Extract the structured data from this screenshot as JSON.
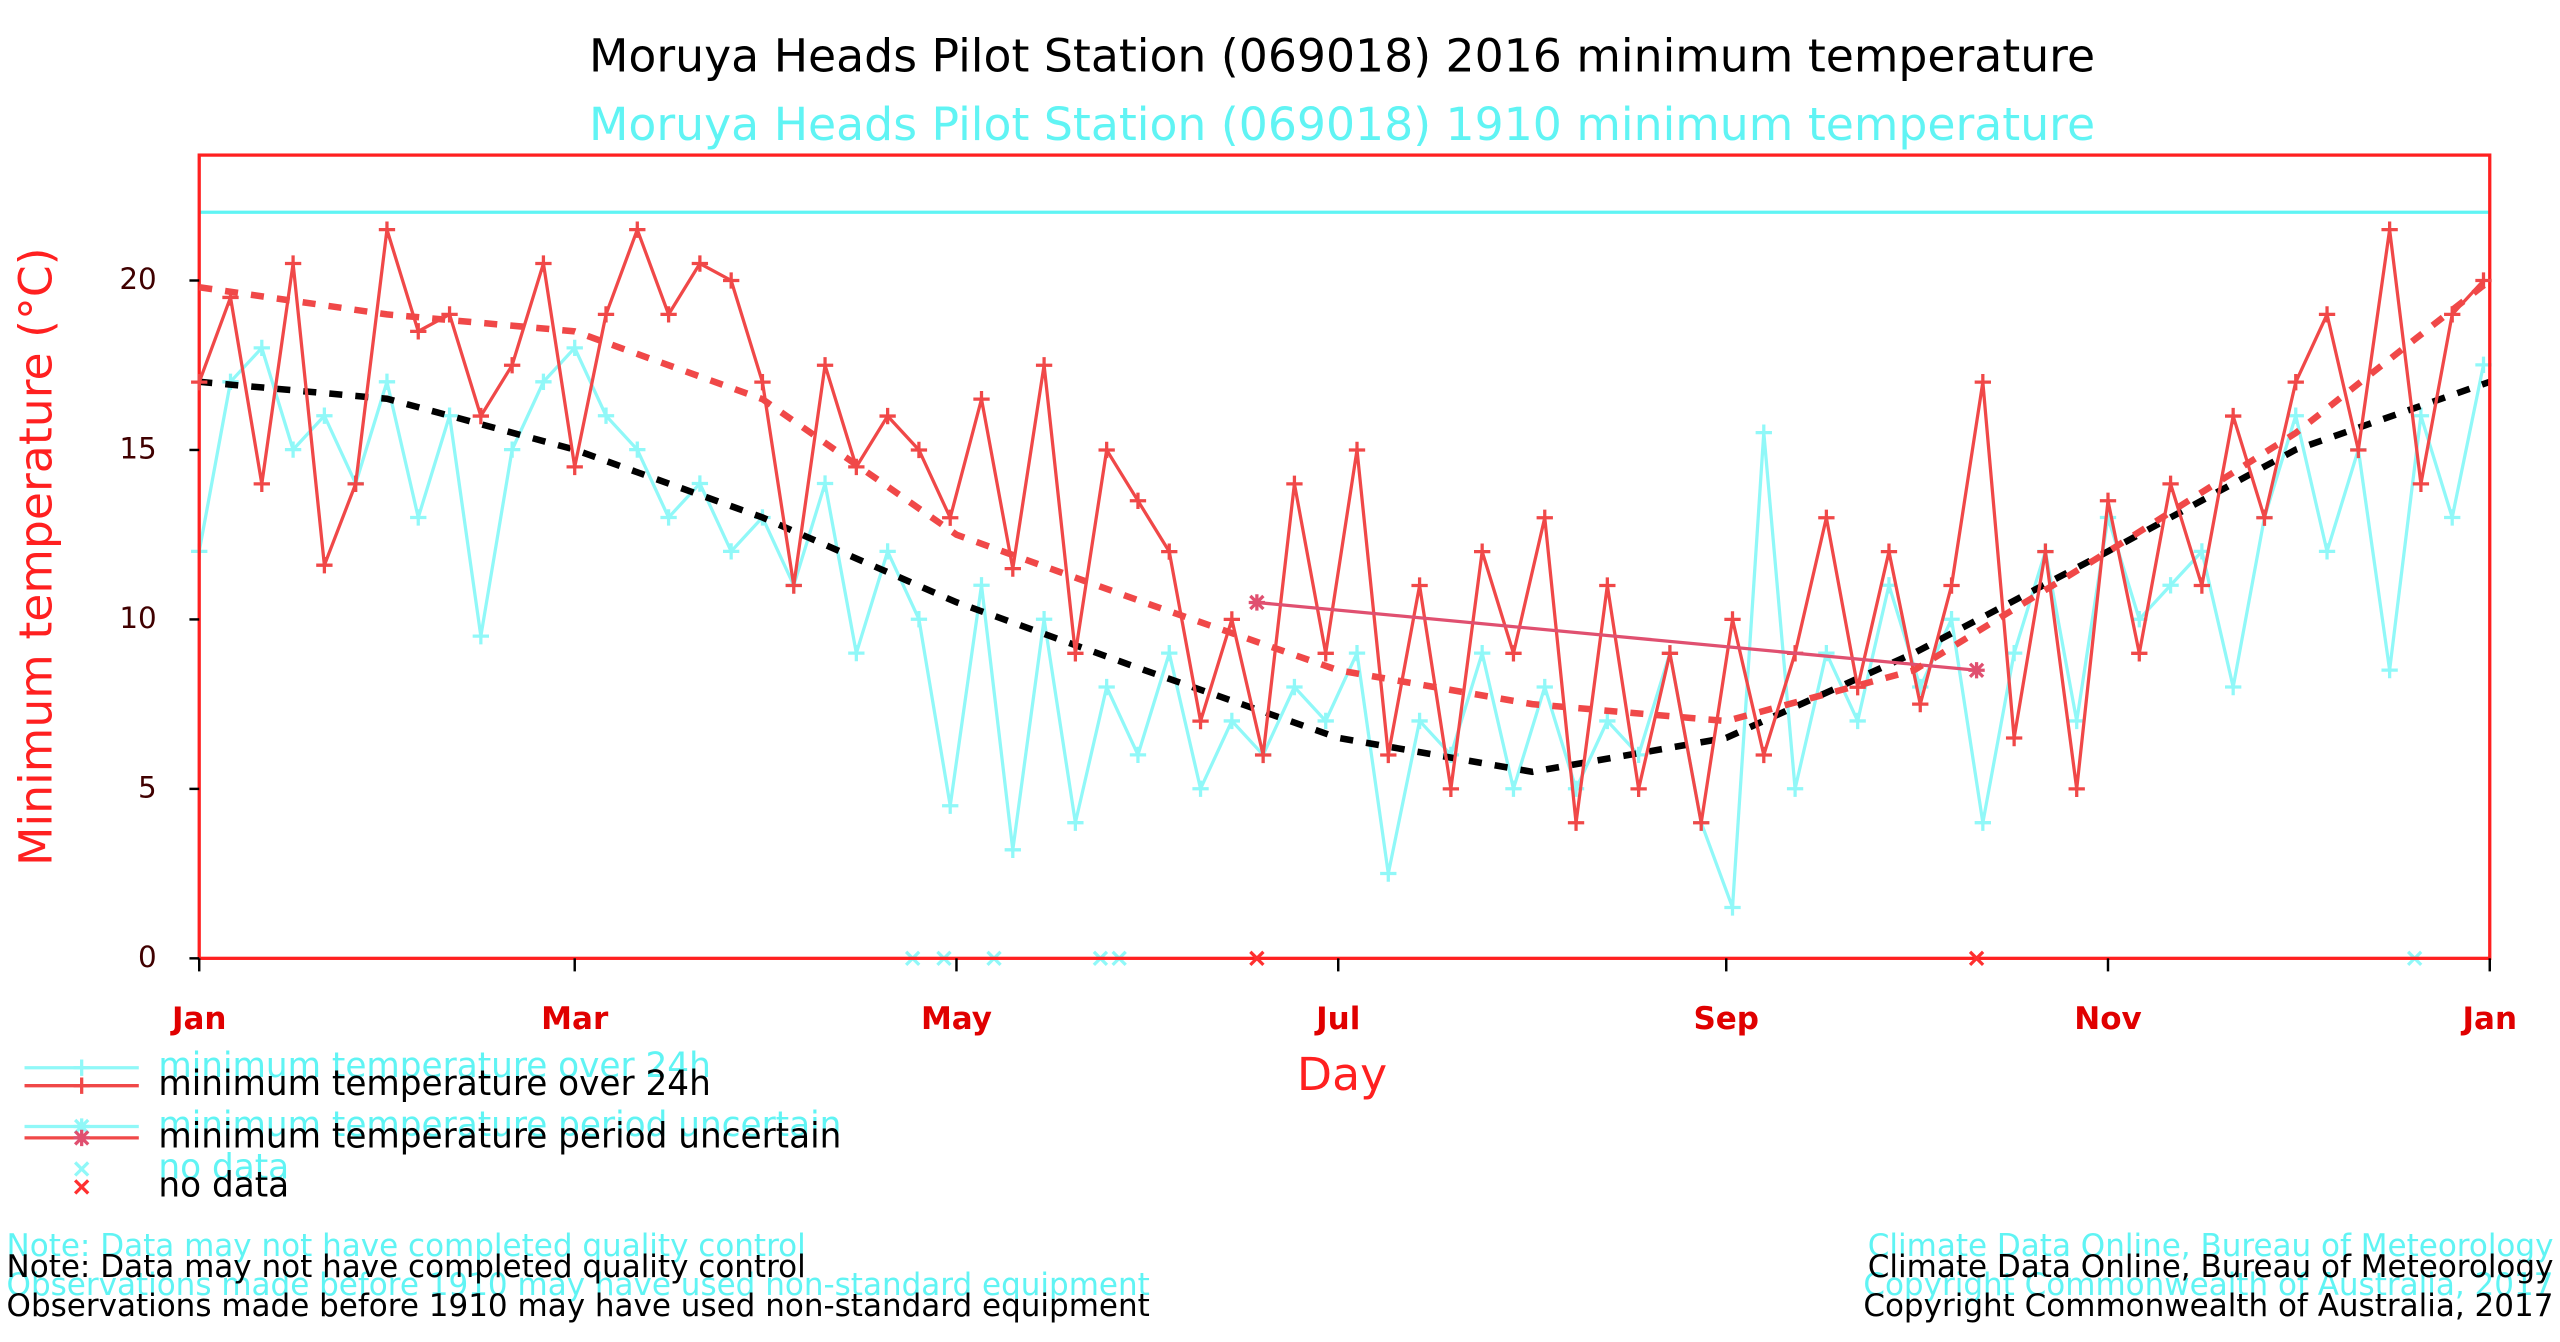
{
  "chart_data": [
    {
      "type": "line",
      "title": "Moruya Heads Pilot Station (069018) 2016 minimum temperature",
      "title_color": "#000000",
      "text_color": "#000000",
      "frame_color": "#ff2020",
      "tick_label_color": "#e00000",
      "axis_label_color": "#ff2020",
      "x_label": "Day",
      "y_label": "Minimum temperature (°C)",
      "xlim": [
        1,
        367
      ],
      "ylim": [
        0,
        23.7
      ],
      "xticks": [
        {
          "value": 1,
          "label": "Jan"
        },
        {
          "value": 61,
          "label": "Mar"
        },
        {
          "value": 122,
          "label": "May"
        },
        {
          "value": 183,
          "label": "Jul"
        },
        {
          "value": 245,
          "label": "Sep"
        },
        {
          "value": 306,
          "label": "Nov"
        },
        {
          "value": 367,
          "label": "Jan"
        }
      ],
      "yticks": [
        0,
        5,
        10,
        15,
        20
      ],
      "series": [
        {
          "name": "minimum temperature over 24h",
          "color": "#f04848",
          "marker": "plus",
          "x": [
            1,
            6,
            11,
            16,
            21,
            26,
            31,
            36,
            41,
            46,
            51,
            56,
            61,
            66,
            71,
            76,
            81,
            86,
            91,
            96,
            101,
            106,
            111,
            116,
            121,
            126,
            131,
            136,
            141,
            146,
            151,
            156,
            161,
            166,
            171,
            176,
            181,
            186,
            191,
            196,
            201,
            206,
            211,
            216,
            221,
            226,
            231,
            236,
            241,
            246,
            251,
            256,
            261,
            266,
            271,
            276,
            281,
            286,
            291,
            296,
            301,
            306,
            311,
            316,
            321,
            326,
            331,
            336,
            341,
            346,
            351,
            356,
            361,
            366
          ],
          "values": [
            17,
            19.5,
            14,
            20.5,
            11.6,
            14,
            21.5,
            18.5,
            19,
            16,
            17.5,
            20.5,
            14.5,
            19,
            21.5,
            19,
            20.5,
            20,
            17,
            11,
            17.5,
            14.5,
            16,
            15,
            13,
            16.5,
            11.5,
            17.5,
            9,
            15,
            13.5,
            12,
            7,
            10,
            6,
            14,
            9,
            15,
            6,
            11,
            5,
            12,
            9,
            13,
            4,
            11,
            5,
            9,
            4,
            10,
            6,
            9,
            13,
            8,
            12,
            7.5,
            11,
            17,
            6.5,
            12,
            5,
            13.5,
            9,
            14,
            11,
            16,
            13,
            17,
            19,
            15,
            21.5,
            14,
            19,
            20
          ]
        },
        {
          "name": "minimum temperature period uncertain",
          "color": "#e05070",
          "marker": "star",
          "x": [
            170,
            285
          ],
          "values": [
            10.5,
            8.5
          ]
        },
        {
          "name": "no data",
          "color": "#ff3030",
          "marker": "cross",
          "line": false,
          "x": [
            170,
            285
          ],
          "values": [
            0,
            0
          ]
        },
        {
          "color": "#f04848",
          "style": "dashed",
          "x": [
            1,
            31,
            61,
            91,
            122,
            152,
            183,
            214,
            245,
            275,
            306,
            336,
            367
          ],
          "values": [
            19.8,
            19,
            18.5,
            16.5,
            12.5,
            10.5,
            8.5,
            7.5,
            7,
            8.5,
            12,
            15.5,
            20
          ]
        }
      ],
      "notes": [
        "Note: Data may not have completed quality control",
        "Observations made before 1910 may have used non-standard equipment"
      ],
      "credits": [
        "Climate Data Online, Bureau of Meteorology",
        "Copyright Commonwealth of Australia, 2017"
      ]
    },
    {
      "type": "line",
      "title": "Moruya Heads Pilot Station (069018) 1910 minimum temperature",
      "title_color": "#60f4f4",
      "text_color": "#60f4f4",
      "frame_color": "#60f4f4",
      "xlim": [
        1,
        367
      ],
      "ylim": [
        0,
        22
      ],
      "series": [
        {
          "name": "minimum temperature over 24h",
          "color": "#90f8f8",
          "marker": "plus",
          "x": [
            1,
            6,
            11,
            16,
            21,
            26,
            31,
            36,
            41,
            46,
            51,
            56,
            61,
            66,
            71,
            76,
            81,
            86,
            91,
            96,
            101,
            106,
            111,
            116,
            121,
            126,
            131,
            136,
            141,
            146,
            151,
            156,
            161,
            166,
            171,
            176,
            181,
            186,
            191,
            196,
            201,
            206,
            211,
            216,
            221,
            226,
            231,
            236,
            241,
            246,
            251,
            256,
            261,
            266,
            271,
            276,
            281,
            286,
            291,
            296,
            301,
            306,
            311,
            316,
            321,
            326,
            331,
            336,
            341,
            346,
            351,
            356,
            361,
            366
          ],
          "values": [
            12,
            17,
            18,
            15,
            16,
            14,
            17,
            13,
            16,
            9.5,
            15,
            17,
            18,
            16,
            15,
            13,
            14,
            12,
            13,
            11,
            14,
            9,
            12,
            10,
            4.5,
            11,
            3.2,
            10,
            4,
            8,
            6,
            9,
            5,
            7,
            6,
            8,
            7,
            9,
            2.5,
            7,
            6,
            9,
            5,
            8,
            5,
            7,
            6,
            9,
            4,
            1.5,
            15.5,
            5,
            9,
            7,
            11,
            8,
            10,
            4,
            9,
            12,
            7,
            13,
            10,
            11,
            12,
            8,
            13,
            16,
            12,
            15,
            8.5,
            16,
            13,
            17.5
          ]
        },
        {
          "name": "minimum temperature period uncertain",
          "color": "#90f8f8",
          "marker": "star",
          "x": [],
          "values": []
        },
        {
          "name": "no data",
          "color": "#90f8f8",
          "marker": "cross",
          "line": false,
          "x": [
            115,
            120,
            128,
            145,
            148,
            355
          ],
          "values": [
            0,
            0,
            0,
            0,
            0,
            0
          ]
        },
        {
          "color": "#000000",
          "style": "dashed",
          "x": [
            1,
            31,
            61,
            91,
            122,
            152,
            183,
            214,
            245,
            275,
            306,
            336,
            367
          ],
          "values": [
            17,
            16.5,
            15,
            13,
            10.5,
            8.5,
            6.5,
            5.5,
            6.5,
            9,
            12,
            15,
            17
          ]
        }
      ],
      "notes": [
        "Note: Data may not have completed quality control",
        "Observations made before 1910 may have used non-standard equipment"
      ],
      "credits": [
        "Climate Data Online, Bureau of Meteorology",
        "Copyright Commonwealth of Australia, 2017"
      ]
    }
  ]
}
